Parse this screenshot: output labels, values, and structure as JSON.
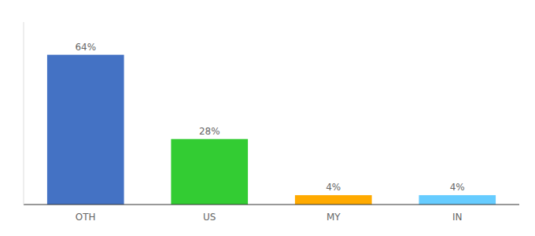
{
  "chart_data": {
    "type": "bar",
    "categories": [
      "OTH",
      "US",
      "MY",
      "IN"
    ],
    "values": [
      64,
      28,
      4,
      4
    ],
    "value_labels": [
      "64%",
      "28%",
      "4%",
      "4%"
    ],
    "colors": [
      "#4472c4",
      "#33cc33",
      "#ffaa00",
      "#66ccff"
    ],
    "ylim": [
      0,
      78
    ],
    "data_labels": true,
    "tick_labels": "x",
    "grid": false
  }
}
